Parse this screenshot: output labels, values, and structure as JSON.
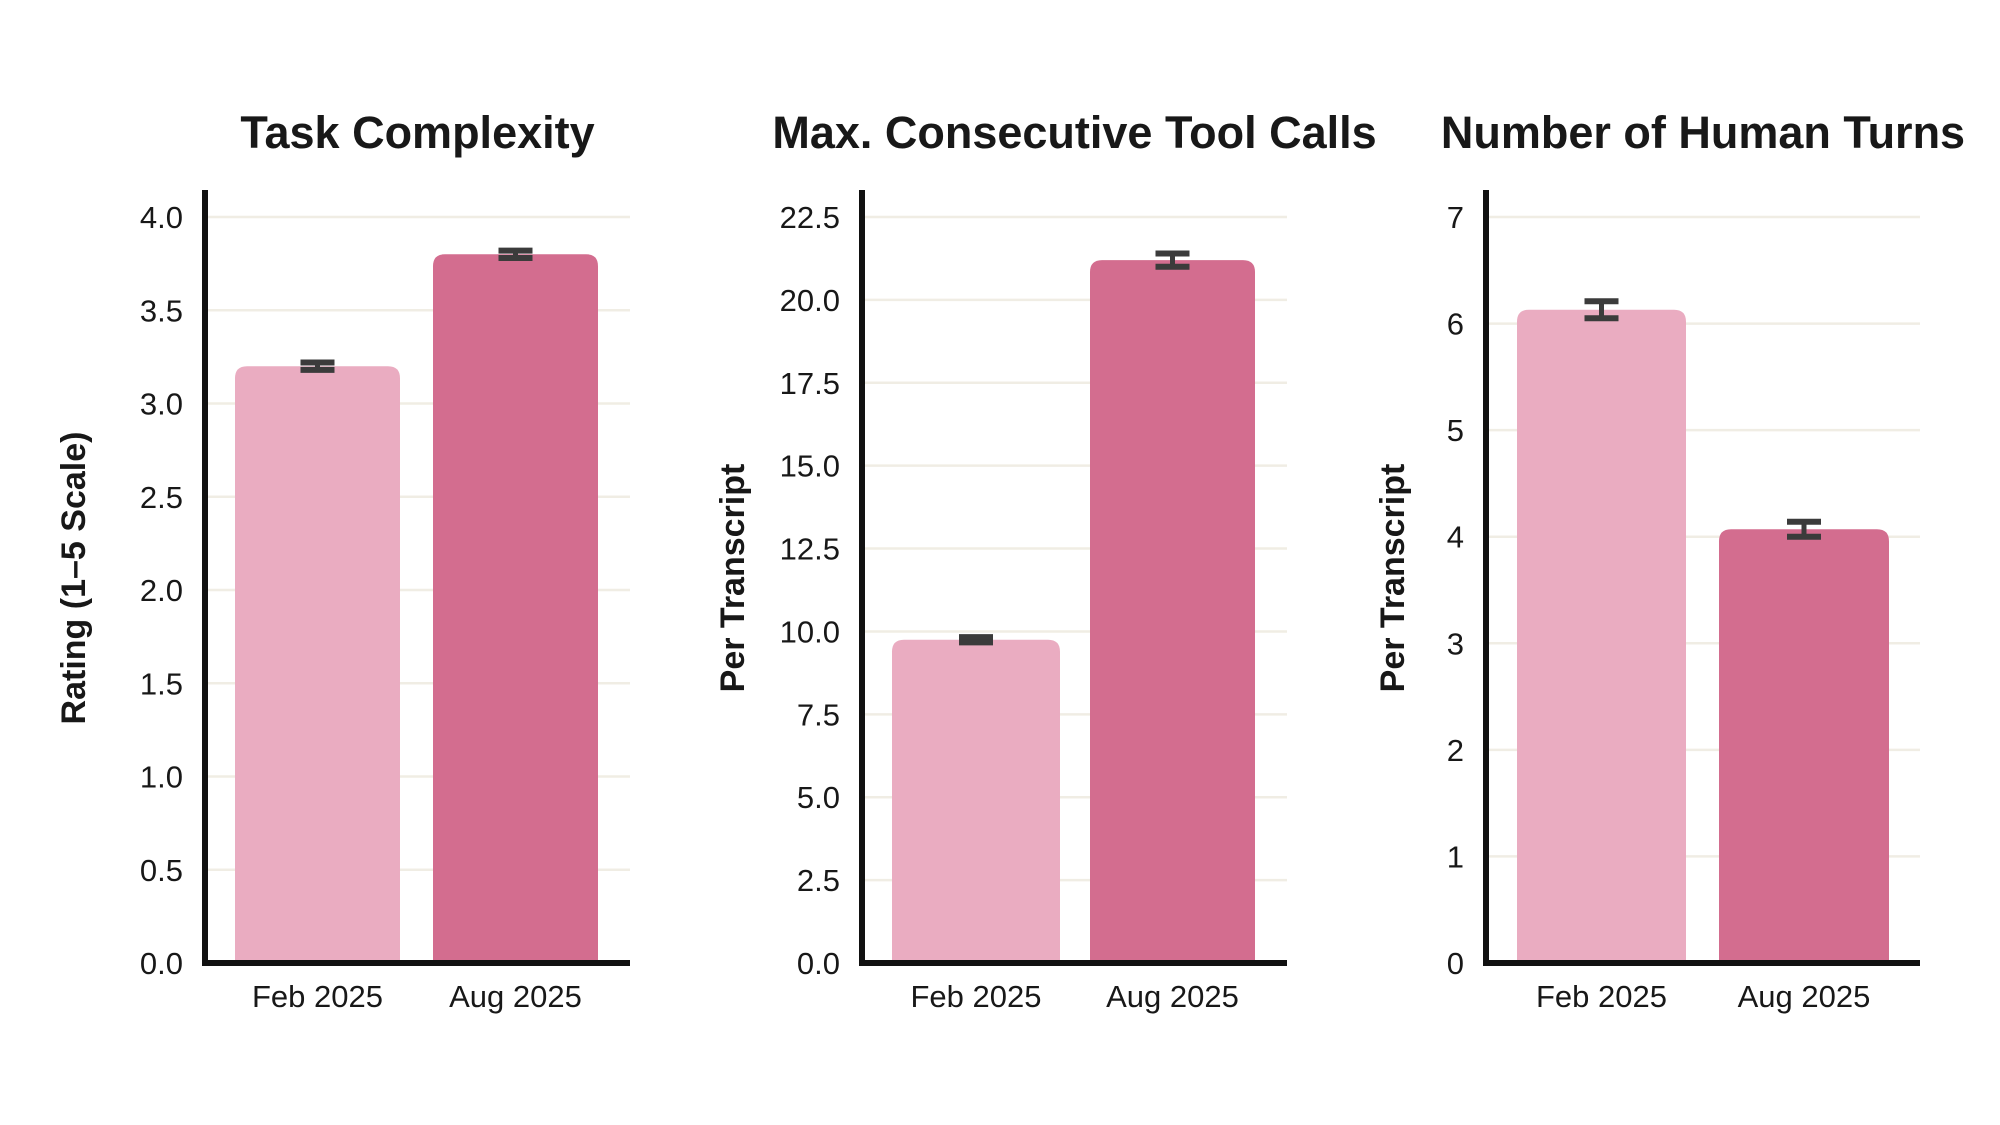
{
  "page": {
    "background_color": "#ffffff"
  },
  "colors": {
    "bar_feb_2025": "#eaacc1",
    "bar_aug_2025": "#d36d8f",
    "gridline": "#f0ede4",
    "axis": "#111111",
    "error_bar": "#3b3b3b",
    "text": "#181818"
  },
  "chart_data": [
    {
      "type": "bar",
      "title": "Task Complexity",
      "ylabel": "Rating (1–5 Scale)",
      "xlabel": "",
      "categories": [
        "Feb 2025",
        "Aug 2025"
      ],
      "values": [
        3.2,
        3.8
      ],
      "errors": [
        0.02,
        0.02
      ],
      "bar_colors": [
        "#eaacc1",
        "#d36d8f"
      ],
      "yticks": [
        "0.0",
        "0.5",
        "1.0",
        "1.5",
        "2.0",
        "2.5",
        "3.0",
        "3.5",
        "4.0"
      ],
      "ylim": [
        0,
        4.35
      ],
      "grid": true,
      "legend": "none"
    },
    {
      "type": "bar",
      "title": "Max. Consecutive Tool Calls",
      "ylabel": "Per Transcript",
      "xlabel": "",
      "categories": [
        "Feb 2025",
        "Aug 2025"
      ],
      "values": [
        9.75,
        21.2
      ],
      "errors": [
        0.08,
        0.2
      ],
      "bar_colors": [
        "#eaacc1",
        "#d36d8f"
      ],
      "yticks": [
        "0.0",
        "2.5",
        "5.0",
        "7.5",
        "10.0",
        "12.5",
        "15.0",
        "17.5",
        "20.0",
        "22.5"
      ],
      "ylim": [
        0,
        24.4
      ],
      "grid": true,
      "legend": "none"
    },
    {
      "type": "bar",
      "title": "Number of Human Turns",
      "ylabel": "Per Transcript",
      "xlabel": "",
      "categories": [
        "Feb 2025",
        "Aug 2025"
      ],
      "values": [
        6.13,
        4.07
      ],
      "errors": [
        0.08,
        0.07
      ],
      "bar_colors": [
        "#eaacc1",
        "#d36d8f"
      ],
      "yticks": [
        "0",
        "1",
        "2",
        "3",
        "4",
        "5",
        "6",
        "7"
      ],
      "ylim": [
        0,
        7.6
      ],
      "grid": true,
      "legend": "none"
    }
  ]
}
